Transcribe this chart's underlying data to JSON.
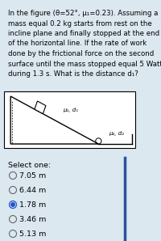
{
  "bg_color": "#dce8f0",
  "question_text": "In the figure (θ=52°, μ₁=0.23). Assuming a\nmass equal 0.2 kg starts from rest on the\nincline plane and finally stopped at the end\nof the horizontal line. If the rate of work\ndone by the frictional force on the second\nsurface until the mass stopped equal 5 Watt\nduring 1.3 s. What is the distance d₁?",
  "diagram_bg": "#f5f5f5",
  "select_label": "Select one:",
  "options": [
    "7.05 m",
    "6.44 m",
    "1.78 m",
    "3.46 m",
    "5.13 m"
  ],
  "selected_index": 2,
  "mu1_d1_label": "μ₁, d₁",
  "mu2_d2_label": "μ₂, d₂",
  "divider_color": "#2a52a0",
  "text_fontsize": 6.2,
  "option_fontsize": 6.8,
  "select_fontsize": 6.8
}
